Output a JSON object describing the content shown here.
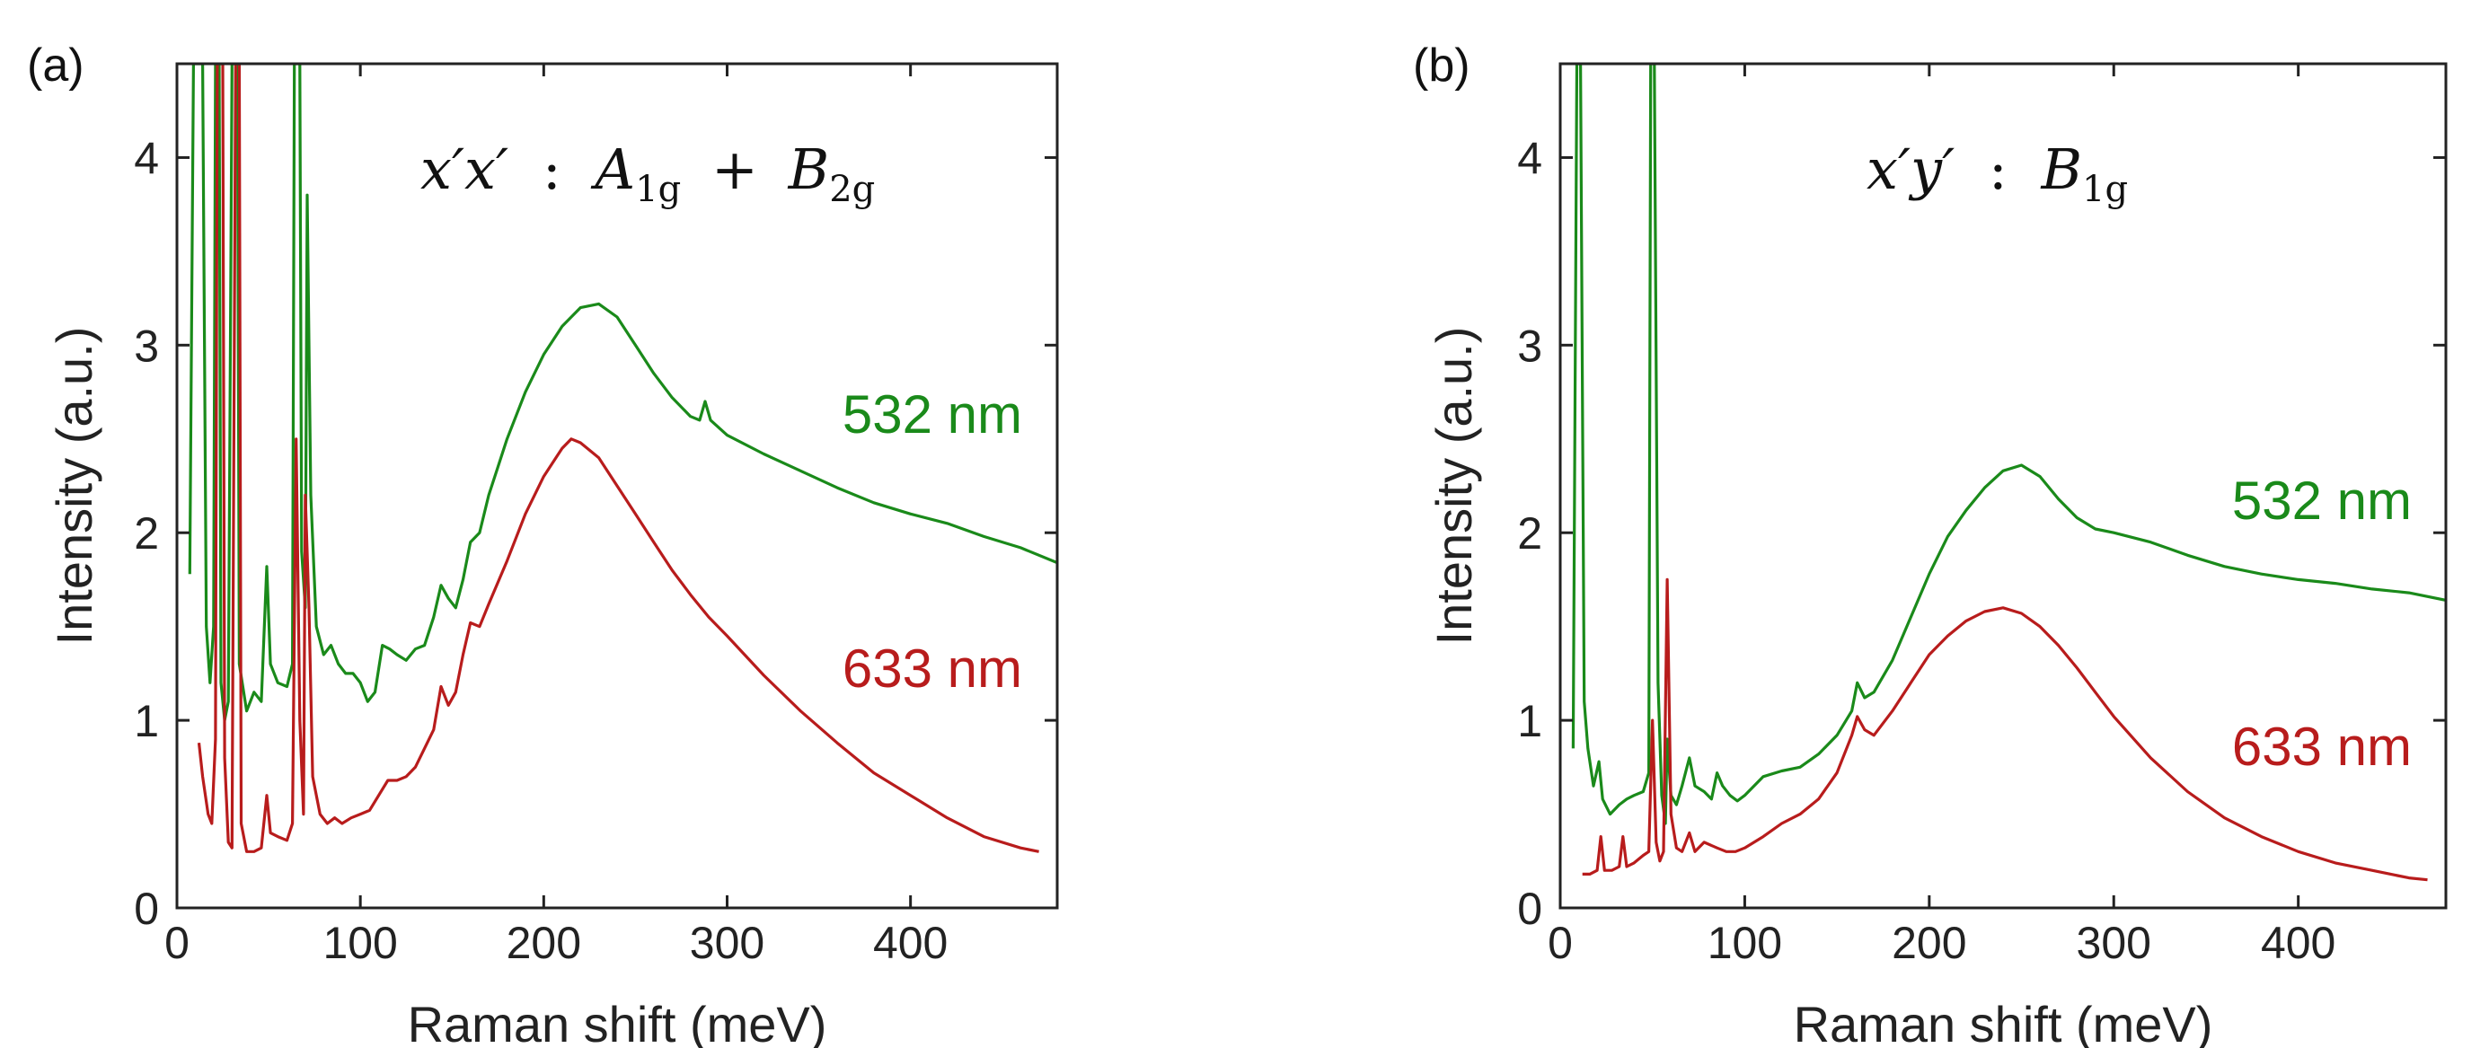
{
  "chart_data": [
    {
      "type": "line",
      "panel_label": "(a)",
      "annotation": {
        "base": "x′x′",
        "separator": ":",
        "term1_symbol": "A",
        "term1_subscript": "1g",
        "operator": "+",
        "term2_symbol": "B",
        "term2_subscript": "2g"
      },
      "xlabel": "Raman shift (meV)",
      "ylabel": "Intensity (a.u.)",
      "xlim": [
        0,
        480
      ],
      "ylim": [
        0,
        4.5
      ],
      "xticks": [
        "0",
        "100",
        "200",
        "300",
        "400"
      ],
      "yticks": [
        "0",
        "1",
        "2",
        "3",
        "4"
      ],
      "grid": false,
      "series": [
        {
          "name": "532 nm",
          "color": "#1a8a1a",
          "points": [
            [
              7,
              1.78
            ],
            [
              9,
              4.5
            ],
            [
              14,
              4.5
            ],
            [
              16,
              1.5
            ],
            [
              18,
              1.2
            ],
            [
              20,
              1.5
            ],
            [
              21,
              4.5
            ],
            [
              23,
              4.5
            ],
            [
              24,
              1.2
            ],
            [
              26,
              1.0
            ],
            [
              28,
              1.1
            ],
            [
              30,
              4.5
            ],
            [
              33,
              4.5
            ],
            [
              34,
              1.3
            ],
            [
              38,
              1.05
            ],
            [
              42,
              1.15
            ],
            [
              46,
              1.1
            ],
            [
              49,
              1.82
            ],
            [
              51,
              1.3
            ],
            [
              55,
              1.2
            ],
            [
              60,
              1.18
            ],
            [
              63,
              1.3
            ],
            [
              64,
              4.5
            ],
            [
              67,
              4.5
            ],
            [
              68,
              1.9
            ],
            [
              70,
              1.6
            ],
            [
              71,
              3.8
            ],
            [
              73,
              2.2
            ],
            [
              76,
              1.5
            ],
            [
              80,
              1.35
            ],
            [
              84,
              1.4
            ],
            [
              88,
              1.3
            ],
            [
              92,
              1.25
            ],
            [
              96,
              1.25
            ],
            [
              100,
              1.2
            ],
            [
              104,
              1.1
            ],
            [
              108,
              1.15
            ],
            [
              112,
              1.4
            ],
            [
              116,
              1.38
            ],
            [
              120,
              1.35
            ],
            [
              125,
              1.32
            ],
            [
              130,
              1.38
            ],
            [
              135,
              1.4
            ],
            [
              140,
              1.55
            ],
            [
              144,
              1.72
            ],
            [
              148,
              1.65
            ],
            [
              152,
              1.6
            ],
            [
              156,
              1.75
            ],
            [
              160,
              1.95
            ],
            [
              165,
              2.0
            ],
            [
              170,
              2.2
            ],
            [
              175,
              2.35
            ],
            [
              180,
              2.5
            ],
            [
              190,
              2.75
            ],
            [
              200,
              2.95
            ],
            [
              210,
              3.1
            ],
            [
              220,
              3.2
            ],
            [
              230,
              3.22
            ],
            [
              240,
              3.15
            ],
            [
              250,
              3.0
            ],
            [
              260,
              2.85
            ],
            [
              270,
              2.72
            ],
            [
              280,
              2.62
            ],
            [
              285,
              2.6
            ],
            [
              288,
              2.7
            ],
            [
              291,
              2.6
            ],
            [
              300,
              2.52
            ],
            [
              320,
              2.42
            ],
            [
              340,
              2.33
            ],
            [
              360,
              2.24
            ],
            [
              380,
              2.16
            ],
            [
              400,
              2.1
            ],
            [
              420,
              2.05
            ],
            [
              440,
              1.98
            ],
            [
              460,
              1.92
            ],
            [
              480,
              1.84
            ]
          ]
        },
        {
          "name": "633 nm",
          "color": "#b81c1c",
          "points": [
            [
              12,
              0.88
            ],
            [
              14,
              0.7
            ],
            [
              17,
              0.5
            ],
            [
              19,
              0.45
            ],
            [
              21,
              0.9
            ],
            [
              22,
              4.5
            ],
            [
              25,
              4.5
            ],
            [
              26,
              0.8
            ],
            [
              28,
              0.35
            ],
            [
              30,
              0.32
            ],
            [
              32,
              4.5
            ],
            [
              34,
              4.5
            ],
            [
              35,
              0.45
            ],
            [
              38,
              0.3
            ],
            [
              42,
              0.3
            ],
            [
              46,
              0.32
            ],
            [
              49,
              0.6
            ],
            [
              51,
              0.4
            ],
            [
              55,
              0.38
            ],
            [
              60,
              0.36
            ],
            [
              63,
              0.45
            ],
            [
              65,
              2.5
            ],
            [
              67,
              1.0
            ],
            [
              69,
              0.5
            ],
            [
              70,
              2.2
            ],
            [
              72,
              1.6
            ],
            [
              74,
              0.7
            ],
            [
              78,
              0.5
            ],
            [
              82,
              0.45
            ],
            [
              86,
              0.48
            ],
            [
              90,
              0.45
            ],
            [
              95,
              0.48
            ],
            [
              100,
              0.5
            ],
            [
              105,
              0.52
            ],
            [
              110,
              0.6
            ],
            [
              115,
              0.68
            ],
            [
              120,
              0.68
            ],
            [
              125,
              0.7
            ],
            [
              130,
              0.75
            ],
            [
              135,
              0.85
            ],
            [
              140,
              0.95
            ],
            [
              144,
              1.18
            ],
            [
              148,
              1.08
            ],
            [
              152,
              1.15
            ],
            [
              156,
              1.35
            ],
            [
              160,
              1.52
            ],
            [
              165,
              1.5
            ],
            [
              170,
              1.62
            ],
            [
              180,
              1.85
            ],
            [
              190,
              2.1
            ],
            [
              200,
              2.3
            ],
            [
              210,
              2.45
            ],
            [
              215,
              2.5
            ],
            [
              220,
              2.48
            ],
            [
              230,
              2.4
            ],
            [
              240,
              2.25
            ],
            [
              250,
              2.1
            ],
            [
              260,
              1.95
            ],
            [
              270,
              1.8
            ],
            [
              280,
              1.67
            ],
            [
              290,
              1.55
            ],
            [
              300,
              1.45
            ],
            [
              320,
              1.24
            ],
            [
              340,
              1.05
            ],
            [
              360,
              0.88
            ],
            [
              380,
              0.72
            ],
            [
              400,
              0.6
            ],
            [
              420,
              0.48
            ],
            [
              440,
              0.38
            ],
            [
              460,
              0.32
            ],
            [
              470,
              0.3
            ]
          ]
        }
      ]
    },
    {
      "type": "line",
      "panel_label": "(b)",
      "annotation": {
        "base": "x′y′",
        "separator": ":",
        "term1_symbol": "B",
        "term1_subscript": "1g"
      },
      "xlabel": "Raman shift (meV)",
      "ylabel": "Intensity (a.u.)",
      "xlim": [
        0,
        480
      ],
      "ylim": [
        0,
        4.5
      ],
      "xticks": [
        "0",
        "100",
        "200",
        "300",
        "400"
      ],
      "yticks": [
        "0",
        "1",
        "2",
        "3",
        "4"
      ],
      "grid": false,
      "series": [
        {
          "name": "532 nm",
          "color": "#1a8a1a",
          "points": [
            [
              7,
              0.85
            ],
            [
              9,
              4.5
            ],
            [
              11,
              4.5
            ],
            [
              13,
              1.1
            ],
            [
              15,
              0.85
            ],
            [
              18,
              0.65
            ],
            [
              21,
              0.78
            ],
            [
              23,
              0.58
            ],
            [
              27,
              0.5
            ],
            [
              32,
              0.55
            ],
            [
              36,
              0.58
            ],
            [
              40,
              0.6
            ],
            [
              45,
              0.62
            ],
            [
              48,
              0.72
            ],
            [
              49,
              4.5
            ],
            [
              51,
              4.5
            ],
            [
              53,
              1.2
            ],
            [
              55,
              0.6
            ],
            [
              57,
              0.45
            ],
            [
              58,
              0.9
            ],
            [
              60,
              0.6
            ],
            [
              63,
              0.55
            ],
            [
              66,
              0.65
            ],
            [
              70,
              0.8
            ],
            [
              73,
              0.65
            ],
            [
              78,
              0.62
            ],
            [
              82,
              0.58
            ],
            [
              85,
              0.72
            ],
            [
              88,
              0.65
            ],
            [
              92,
              0.6
            ],
            [
              96,
              0.57
            ],
            [
              100,
              0.6
            ],
            [
              110,
              0.7
            ],
            [
              120,
              0.73
            ],
            [
              130,
              0.75
            ],
            [
              140,
              0.82
            ],
            [
              150,
              0.92
            ],
            [
              158,
              1.05
            ],
            [
              161,
              1.2
            ],
            [
              165,
              1.12
            ],
            [
              170,
              1.15
            ],
            [
              180,
              1.32
            ],
            [
              190,
              1.55
            ],
            [
              200,
              1.78
            ],
            [
              210,
              1.98
            ],
            [
              220,
              2.12
            ],
            [
              230,
              2.24
            ],
            [
              240,
              2.33
            ],
            [
              250,
              2.36
            ],
            [
              260,
              2.3
            ],
            [
              270,
              2.18
            ],
            [
              280,
              2.08
            ],
            [
              290,
              2.02
            ],
            [
              300,
              2.0
            ],
            [
              320,
              1.95
            ],
            [
              340,
              1.88
            ],
            [
              360,
              1.82
            ],
            [
              380,
              1.78
            ],
            [
              400,
              1.75
            ],
            [
              420,
              1.73
            ],
            [
              440,
              1.7
            ],
            [
              460,
              1.68
            ],
            [
              480,
              1.64
            ]
          ]
        },
        {
          "name": "633 nm",
          "color": "#b81c1c",
          "points": [
            [
              12,
              0.18
            ],
            [
              16,
              0.18
            ],
            [
              20,
              0.2
            ],
            [
              22,
              0.38
            ],
            [
              24,
              0.2
            ],
            [
              28,
              0.2
            ],
            [
              32,
              0.22
            ],
            [
              34,
              0.38
            ],
            [
              36,
              0.22
            ],
            [
              40,
              0.24
            ],
            [
              45,
              0.28
            ],
            [
              48,
              0.3
            ],
            [
              50,
              1.0
            ],
            [
              52,
              0.35
            ],
            [
              54,
              0.25
            ],
            [
              56,
              0.3
            ],
            [
              58,
              1.75
            ],
            [
              60,
              0.5
            ],
            [
              63,
              0.32
            ],
            [
              66,
              0.3
            ],
            [
              70,
              0.4
            ],
            [
              73,
              0.3
            ],
            [
              78,
              0.35
            ],
            [
              85,
              0.32
            ],
            [
              90,
              0.3
            ],
            [
              95,
              0.3
            ],
            [
              100,
              0.32
            ],
            [
              110,
              0.38
            ],
            [
              120,
              0.45
            ],
            [
              130,
              0.5
            ],
            [
              140,
              0.58
            ],
            [
              150,
              0.72
            ],
            [
              158,
              0.92
            ],
            [
              161,
              1.02
            ],
            [
              165,
              0.95
            ],
            [
              170,
              0.92
            ],
            [
              180,
              1.05
            ],
            [
              190,
              1.2
            ],
            [
              200,
              1.35
            ],
            [
              210,
              1.45
            ],
            [
              220,
              1.53
            ],
            [
              230,
              1.58
            ],
            [
              240,
              1.6
            ],
            [
              250,
              1.57
            ],
            [
              260,
              1.5
            ],
            [
              270,
              1.4
            ],
            [
              280,
              1.28
            ],
            [
              290,
              1.15
            ],
            [
              300,
              1.02
            ],
            [
              320,
              0.8
            ],
            [
              340,
              0.62
            ],
            [
              360,
              0.48
            ],
            [
              380,
              0.38
            ],
            [
              400,
              0.3
            ],
            [
              420,
              0.24
            ],
            [
              440,
              0.2
            ],
            [
              460,
              0.16
            ],
            [
              470,
              0.15
            ]
          ]
        }
      ]
    }
  ]
}
